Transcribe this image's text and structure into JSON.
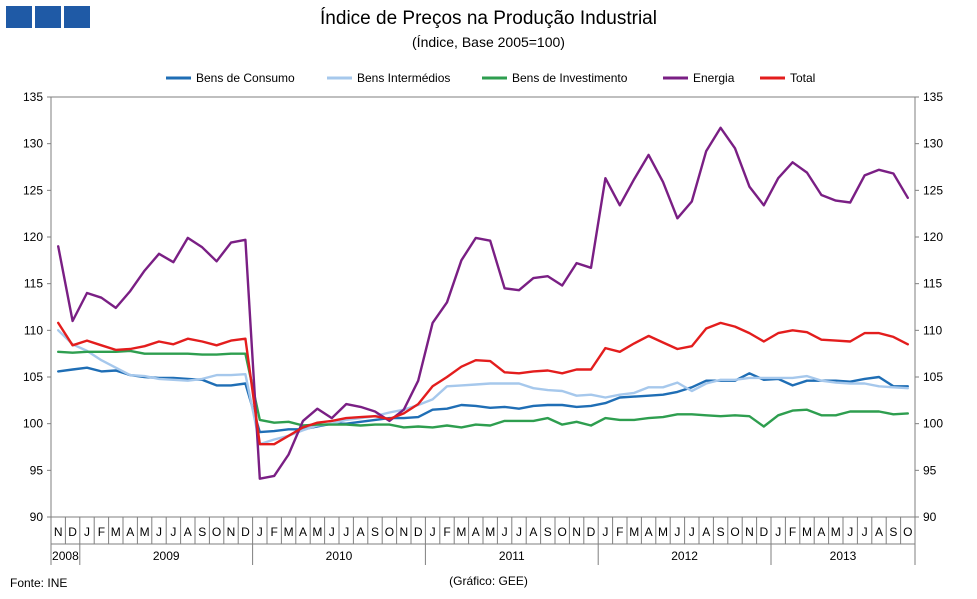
{
  "logo": {
    "icon": "ine-blocks-icon",
    "color": "#1f5aa6"
  },
  "header": {
    "title": "Índice de Preços na Produção Industrial",
    "subtitle": "(Índice,  Base 2005=100)"
  },
  "footer": {
    "source": "Fonte: INE",
    "credit": "(Gráfico:  GEE)"
  },
  "chart_data": {
    "type": "line",
    "title": "Índice de Preços na Produção Industrial",
    "subtitle": "(Índice,  Base 2005=100)",
    "xlabel": "",
    "ylabel": "",
    "ylim": [
      90,
      135
    ],
    "yticks": [
      90,
      95,
      100,
      105,
      110,
      115,
      120,
      125,
      130,
      135
    ],
    "grid": false,
    "legend_position": "top",
    "month_labels": [
      "N",
      "D",
      "J",
      "F",
      "M",
      "A",
      "M",
      "J",
      "J",
      "A",
      "S",
      "O",
      "N",
      "D",
      "J",
      "F",
      "M",
      "A",
      "M",
      "J",
      "J",
      "A",
      "S",
      "O",
      "N",
      "D",
      "J",
      "F",
      "M",
      "A",
      "M",
      "J",
      "J",
      "A",
      "S",
      "O",
      "N",
      "D",
      "J",
      "F",
      "M",
      "A",
      "M",
      "J",
      "J",
      "A",
      "S",
      "O",
      "N",
      "D",
      "J",
      "F",
      "M",
      "A",
      "M",
      "J",
      "J",
      "A",
      "S",
      "O"
    ],
    "years": [
      {
        "label": "2008",
        "months": 2
      },
      {
        "label": "2009",
        "months": 12
      },
      {
        "label": "2010",
        "months": 12
      },
      {
        "label": "2011",
        "months": 12
      },
      {
        "label": "2012",
        "months": 12
      },
      {
        "label": "2013",
        "months": 10
      }
    ],
    "series": [
      {
        "name": "Bens de Consumo",
        "color": "#1f6eb5",
        "values": [
          105.6,
          105.8,
          106.0,
          105.6,
          105.7,
          105.2,
          105.0,
          104.9,
          104.9,
          104.8,
          104.7,
          104.1,
          104.1,
          104.3,
          99.1,
          99.2,
          99.4,
          99.4,
          99.7,
          100.0,
          100.0,
          100.2,
          100.4,
          100.6,
          100.6,
          100.7,
          101.5,
          101.6,
          102.0,
          101.9,
          101.7,
          101.8,
          101.6,
          101.9,
          102.0,
          102.0,
          101.8,
          101.9,
          102.2,
          102.8,
          102.9,
          103.0,
          103.1,
          103.4,
          103.9,
          104.6,
          104.6,
          104.6,
          105.4,
          104.7,
          104.8,
          104.1,
          104.6,
          104.6,
          104.6,
          104.5,
          104.8,
          105.0,
          104.0,
          104.0
        ]
      },
      {
        "name": "Bens Intermédios",
        "color": "#a6c8ec",
        "values": [
          110.0,
          108.5,
          107.8,
          106.8,
          106.0,
          105.2,
          105.1,
          104.8,
          104.7,
          104.6,
          104.8,
          105.2,
          105.2,
          105.3,
          97.8,
          98.3,
          98.7,
          99.3,
          99.8,
          100.0,
          100.4,
          100.6,
          100.8,
          101.2,
          101.5,
          102.0,
          102.6,
          104.0,
          104.1,
          104.2,
          104.3,
          104.3,
          104.3,
          103.8,
          103.6,
          103.5,
          103.0,
          103.1,
          102.8,
          103.1,
          103.3,
          103.9,
          103.9,
          104.4,
          103.5,
          104.3,
          104.7,
          104.7,
          104.9,
          104.9,
          104.9,
          104.9,
          105.1,
          104.6,
          104.4,
          104.3,
          104.3,
          104.0,
          103.9,
          103.8
        ]
      },
      {
        "name": "Bens de Investimento",
        "color": "#2e9e4f",
        "values": [
          107.7,
          107.6,
          107.7,
          107.7,
          107.7,
          107.8,
          107.5,
          107.5,
          107.5,
          107.5,
          107.4,
          107.4,
          107.5,
          107.5,
          100.4,
          100.1,
          100.2,
          99.8,
          99.9,
          99.9,
          99.9,
          99.8,
          99.9,
          99.9,
          99.6,
          99.7,
          99.6,
          99.8,
          99.6,
          99.9,
          99.8,
          100.3,
          100.3,
          100.3,
          100.6,
          99.9,
          100.2,
          99.8,
          100.6,
          100.4,
          100.4,
          100.6,
          100.7,
          101.0,
          101.0,
          100.9,
          100.8,
          100.9,
          100.8,
          99.7,
          100.9,
          101.4,
          101.5,
          100.9,
          100.9,
          101.3,
          101.3,
          101.3,
          101.0,
          101.1
        ]
      },
      {
        "name": "Energia",
        "color": "#7a1f84",
        "values": [
          119.0,
          111.0,
          114.0,
          113.5,
          112.4,
          114.2,
          116.4,
          118.2,
          117.3,
          119.9,
          118.9,
          117.4,
          119.4,
          119.7,
          94.1,
          94.4,
          96.7,
          100.3,
          101.6,
          100.6,
          102.1,
          101.8,
          101.3,
          100.3,
          101.5,
          104.6,
          110.8,
          113.0,
          117.5,
          119.9,
          119.6,
          114.5,
          114.3,
          115.6,
          115.8,
          114.8,
          117.2,
          116.7,
          126.3,
          123.4,
          126.2,
          128.8,
          125.9,
          122.0,
          123.8,
          129.2,
          131.7,
          129.5,
          125.4,
          123.4,
          126.3,
          128.0,
          126.9,
          124.5,
          123.9,
          123.7,
          126.6,
          127.2,
          126.8,
          124.2
        ]
      },
      {
        "name": "Total",
        "color": "#e31d1d",
        "values": [
          110.8,
          108.4,
          108.9,
          108.4,
          107.9,
          108.0,
          108.3,
          108.8,
          108.5,
          109.1,
          108.8,
          108.4,
          108.9,
          109.1,
          97.8,
          97.8,
          98.7,
          99.6,
          100.1,
          100.3,
          100.6,
          100.7,
          100.8,
          100.5,
          101.1,
          102.1,
          104.0,
          105.0,
          106.1,
          106.8,
          106.7,
          105.5,
          105.4,
          105.6,
          105.7,
          105.4,
          105.8,
          105.8,
          108.1,
          107.7,
          108.6,
          109.4,
          108.7,
          108.0,
          108.3,
          110.2,
          110.8,
          110.4,
          109.7,
          108.8,
          109.7,
          110.0,
          109.8,
          109.0,
          108.9,
          108.8,
          109.7,
          109.7,
          109.3,
          108.5
        ]
      }
    ]
  }
}
